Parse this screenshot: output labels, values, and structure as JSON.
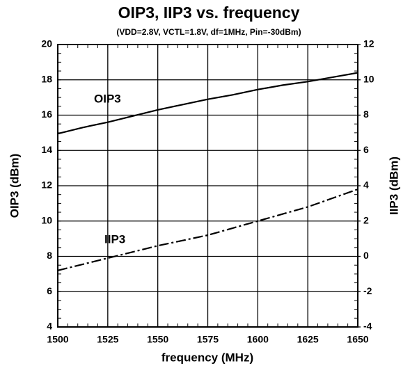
{
  "chart_data": {
    "type": "line",
    "title": "OIP3, IIP3 vs. frequency",
    "subtitle": "(VDD=2.8V, VCTL=1.8V,  df=1MHz, Pin=-30dBm)",
    "x_label": "frequency (MHz)",
    "y_label": "OIP3 (dBm)",
    "y2_label": "IIP3 (dBm)",
    "x": [
      1500,
      1512.5,
      1525,
      1537.5,
      1550,
      1562.5,
      1575,
      1587.5,
      1600,
      1612.5,
      1625,
      1637.5,
      1650
    ],
    "series": [
      {
        "name": "OIP3",
        "color": "#000000",
        "values": [
          14.95,
          15.3,
          15.6,
          15.95,
          16.3,
          16.6,
          16.9,
          17.15,
          17.45,
          17.7,
          17.9,
          18.15,
          18.4
        ]
      },
      {
        "name": "IIP3",
        "color": "#000000",
        "axis": "y2",
        "values": [
          -0.8,
          -0.45,
          -0.1,
          0.25,
          0.6,
          0.9,
          1.2,
          1.6,
          2.0,
          2.4,
          2.8,
          3.3,
          3.8
        ]
      }
    ],
    "xlim": [
      1500,
      1650
    ],
    "xticks": [
      1500,
      1525,
      1550,
      1575,
      1600,
      1625,
      1650
    ],
    "ylim": [
      4,
      20
    ],
    "yticks": [
      4,
      6,
      8,
      10,
      12,
      14,
      16,
      18,
      20
    ],
    "y2lim": [
      -4,
      12
    ],
    "y2ticks": [
      -4,
      -2,
      0,
      2,
      4,
      6,
      8,
      10,
      12
    ],
    "grid": true
  }
}
